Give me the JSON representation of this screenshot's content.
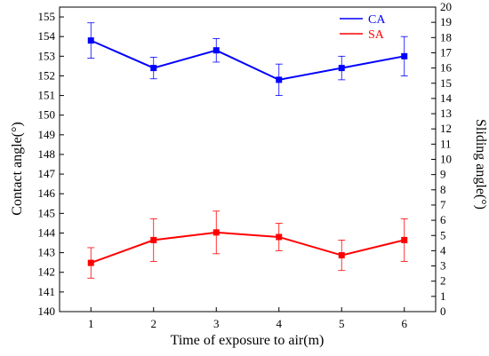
{
  "chart_data": {
    "type": "line",
    "xlabel": "Time of exposure to air(m)",
    "ylabel_left": "Contact angle(°)",
    "ylabel_right": "Sliding angle(°)",
    "x": [
      1,
      2,
      3,
      4,
      5,
      6
    ],
    "x_ticks": [
      "1",
      "2",
      "3",
      "4",
      "5",
      "6"
    ],
    "xlim": [
      0.5,
      6.5
    ],
    "ylim_left": [
      140,
      155.5
    ],
    "ylim_right": [
      0,
      20
    ],
    "y_ticks_left": [
      "140",
      "141",
      "142",
      "143",
      "144",
      "145",
      "146",
      "147",
      "148",
      "149",
      "150",
      "151",
      "152",
      "153",
      "154",
      "155"
    ],
    "y_ticks_right": [
      "0",
      "1",
      "2",
      "3",
      "4",
      "5",
      "6",
      "7",
      "8",
      "9",
      "10",
      "11",
      "12",
      "13",
      "14",
      "15",
      "16",
      "17",
      "18",
      "19",
      "20"
    ],
    "legend_position": "top-right",
    "series": [
      {
        "name": "CA",
        "axis": "left",
        "color": "#0000ff",
        "values": [
          153.8,
          152.4,
          153.3,
          151.8,
          152.4,
          153.0
        ],
        "error": [
          0.9,
          0.55,
          0.6,
          0.8,
          0.6,
          1.0
        ]
      },
      {
        "name": "SA",
        "axis": "right",
        "color": "#ff0000",
        "values": [
          3.2,
          4.7,
          5.2,
          4.9,
          3.7,
          4.7
        ],
        "error": [
          1.0,
          1.4,
          1.4,
          0.9,
          1.0,
          1.4
        ]
      }
    ]
  }
}
